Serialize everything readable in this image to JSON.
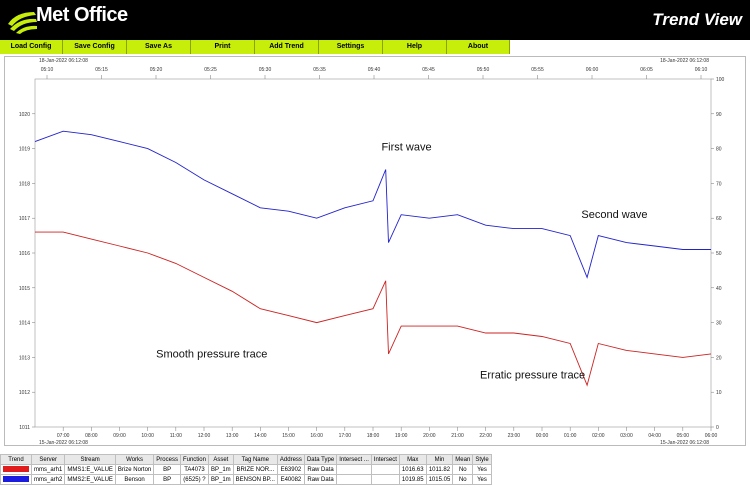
{
  "header": {
    "logo_text": "Met Office",
    "app_title": "Trend View"
  },
  "menu": {
    "items": [
      {
        "label": "Load Config"
      },
      {
        "label": "Save Config"
      },
      {
        "label": "Save As"
      },
      {
        "label": "Print"
      },
      {
        "label": "Add Trend"
      },
      {
        "label": "Settings"
      },
      {
        "label": "Help"
      },
      {
        "label": "About"
      }
    ]
  },
  "chart_data": {
    "type": "line",
    "top_axis": {
      "start_label": "18-Jan-2022 06:12:08",
      "end_label": "18-Jan-2022 06:12:08",
      "ticks": [
        "05:10",
        "05:15",
        "05:20",
        "05:25",
        "05:30",
        "05:35",
        "05:40",
        "05:45",
        "05:50",
        "05:55",
        "06:00",
        "06:05",
        "06:10"
      ]
    },
    "bottom_axis": {
      "start_label": "15-Jan-2022 06:12:08",
      "end_label": "15-Jan-2022 06:12:08",
      "ticks": [
        "07:00",
        "08:00",
        "09:00",
        "10:00",
        "11:00",
        "12:00",
        "13:00",
        "14:00",
        "15:00",
        "16:00",
        "17:00",
        "18:00",
        "19:00",
        "20:00",
        "21:00",
        "22:00",
        "23:00",
        "00:00",
        "01:00",
        "02:00",
        "03:00",
        "04:00",
        "05:00",
        "06:00"
      ]
    },
    "left_axis": {
      "ylim": [
        1011,
        1021
      ],
      "ticks": [
        "1020",
        "1019",
        "1018",
        "1017",
        "1016",
        "1015",
        "1014",
        "1013",
        "1012",
        "1011"
      ]
    },
    "right_axis": {
      "ylim": [
        0,
        100
      ],
      "ticks": [
        "100",
        "90",
        "80",
        "70",
        "60",
        "50",
        "40",
        "30",
        "20",
        "10",
        "0"
      ]
    },
    "x_hours": [
      0,
      1,
      2,
      3,
      4,
      5,
      6,
      7,
      8,
      9,
      10,
      11,
      12,
      13,
      14,
      15,
      16,
      17,
      18,
      19,
      20,
      21,
      22,
      23,
      24
    ],
    "series": [
      {
        "color": "#2222cc",
        "y": [
          1019.2,
          1019.5,
          1019.4,
          1019.2,
          1019.0,
          1018.6,
          1018.1,
          1017.7,
          1017.3,
          1017.2,
          1017.0,
          1017.3,
          1017.5,
          1017.1,
          1017.0,
          1017.1,
          1016.8,
          1016.7,
          1016.7,
          1016.5,
          1016.5,
          1016.3,
          1016.2,
          1016.1,
          1016.1
        ],
        "spikes": [
          {
            "x": 12.45,
            "y": 1018.4
          },
          {
            "x": 12.55,
            "y": 1016.3
          },
          {
            "x": 19.6,
            "y": 1015.3
          }
        ]
      },
      {
        "color": "#cc2222",
        "y": [
          1016.6,
          1016.6,
          1016.4,
          1016.2,
          1016.0,
          1015.7,
          1015.3,
          1014.9,
          1014.4,
          1014.2,
          1014.0,
          1014.2,
          1014.4,
          1013.9,
          1013.9,
          1013.9,
          1013.7,
          1013.7,
          1013.6,
          1013.4,
          1013.4,
          1013.2,
          1013.1,
          1013.0,
          1013.1
        ],
        "spikes": [
          {
            "x": 12.45,
            "y": 1015.2
          },
          {
            "x": 12.55,
            "y": 1013.1
          },
          {
            "x": 19.6,
            "y": 1012.2
          }
        ]
      }
    ],
    "annotations": [
      {
        "text": "First wave",
        "x": 12.3,
        "y": 1018.95
      },
      {
        "text": "Second wave",
        "x": 19.4,
        "y": 1017.0
      },
      {
        "text": "Smooth pressure trace",
        "x": 4.3,
        "y": 1013.0
      },
      {
        "text": "Erratic pressure trace",
        "x": 15.8,
        "y": 1012.4
      }
    ]
  },
  "legend_table": {
    "columns": [
      "Trend",
      "Server",
      "Stream",
      "Works",
      "Process",
      "Function",
      "Asset",
      "Tag Name",
      "Address",
      "Data Type",
      "Intersect ...",
      "Intersect",
      "Max",
      "Min",
      "Mean",
      "Style"
    ],
    "rows": [
      {
        "color": "#e11c1c",
        "cells": [
          "",
          "mms_arh1",
          "MMS1:E_VALUE",
          "Brize Norton",
          "BP",
          "TA4073",
          "BP_1m",
          "BRIZE NOR...",
          "E63902",
          "Raw Data",
          "",
          "",
          "1016.63",
          "1011.82",
          "No",
          "Yes"
        ]
      },
      {
        "color": "#1c1ce1",
        "cells": [
          "",
          "mms_arh2",
          "MMS2:E_VALUE",
          "Benson",
          "BP",
          "(6525) ?",
          "BP_1m",
          "BENSON BP...",
          "E40082",
          "Raw Data",
          "",
          "",
          "1019.85",
          "1015.05",
          "No",
          "Yes"
        ]
      }
    ]
  }
}
